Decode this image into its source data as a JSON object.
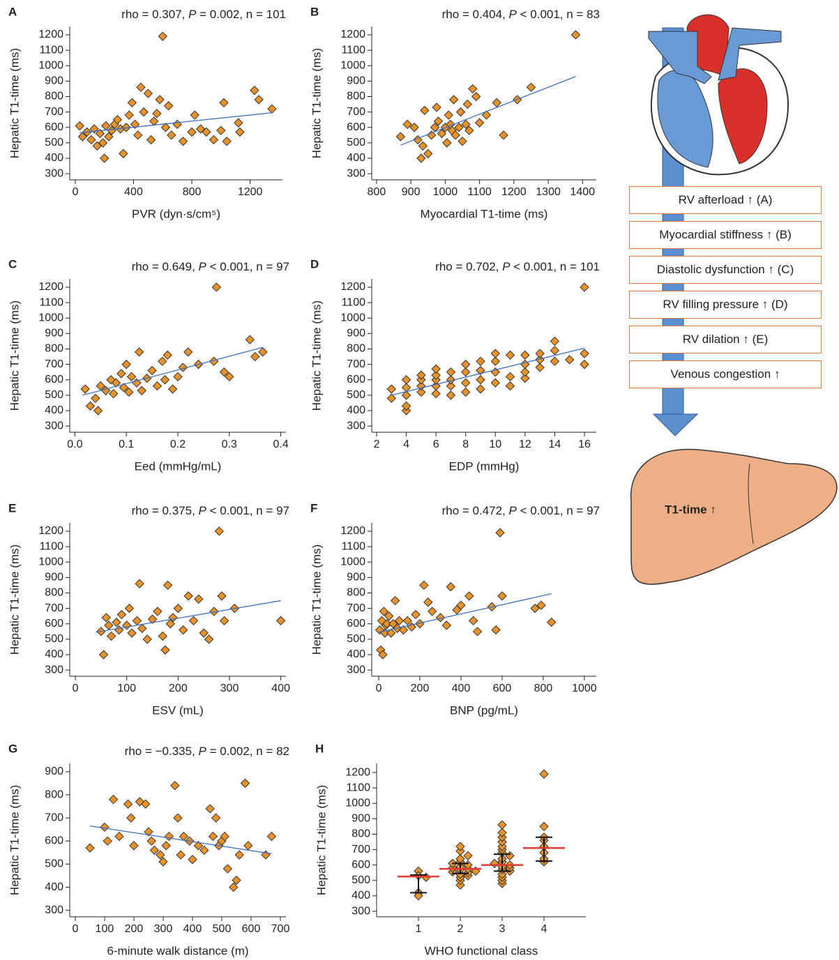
{
  "chart_data": [
    {
      "type": "scatter",
      "label": "A",
      "annotation": {
        "pre": "rho = 0.307, ",
        "italic": "P",
        "post": " = 0.002, n = 101"
      },
      "xlabel": "PVR (dyn·s/cm⁵)",
      "ylabel": "Hepatic T1-time (ms)",
      "color": "#e8922a",
      "fit_color": "#3a6fc4",
      "x": [
        30,
        50,
        80,
        110,
        130,
        150,
        170,
        190,
        200,
        210,
        230,
        250,
        270,
        290,
        310,
        330,
        350,
        370,
        390,
        410,
        430,
        450,
        470,
        500,
        520,
        540,
        560,
        580,
        600,
        620,
        640,
        660,
        700,
        740,
        800,
        820,
        860,
        900,
        950,
        1000,
        1020,
        1040,
        1120,
        1130,
        1230,
        1260,
        1350
      ],
      "y": [
        610,
        540,
        570,
        520,
        590,
        480,
        560,
        500,
        400,
        610,
        540,
        580,
        620,
        650,
        590,
        430,
        600,
        680,
        760,
        620,
        550,
        860,
        700,
        820,
        520,
        640,
        690,
        780,
        1190,
        600,
        740,
        550,
        620,
        510,
        570,
        680,
        590,
        570,
        520,
        580,
        760,
        510,
        630,
        570,
        840,
        780,
        720
      ],
      "fit": {
        "x": [
          30,
          1350
        ],
        "y": [
          565,
          695
        ]
      },
      "xlim": [
        -38,
        1422
      ],
      "ylim": [
        260,
        1254
      ],
      "xticks": [
        0,
        400,
        800,
        1200
      ],
      "yticks": [
        300,
        400,
        500,
        600,
        700,
        800,
        900,
        1000,
        1100,
        1200
      ]
    },
    {
      "type": "scatter",
      "label": "B",
      "annotation": {
        "pre": "rho = 0.404, ",
        "italic": "P",
        "post": " < 0.001, n = 83"
      },
      "xlabel": "Myocardial T1-time (ms)",
      "ylabel": "Hepatic T1-time (ms)",
      "color": "#e8922a",
      "fit_color": "#3a6fc4",
      "x": [
        870,
        890,
        910,
        920,
        930,
        935,
        940,
        950,
        960,
        970,
        975,
        980,
        990,
        1000,
        1005,
        1010,
        1015,
        1020,
        1025,
        1030,
        1040,
        1045,
        1050,
        1060,
        1065,
        1070,
        1080,
        1090,
        1100,
        1120,
        1150,
        1170,
        1210,
        1250,
        1380
      ],
      "y": [
        540,
        620,
        600,
        520,
        400,
        480,
        710,
        430,
        550,
        600,
        730,
        640,
        560,
        600,
        500,
        680,
        620,
        580,
        780,
        550,
        600,
        700,
        510,
        620,
        750,
        580,
        850,
        800,
        630,
        680,
        760,
        550,
        780,
        860,
        1200
      ],
      "fit": {
        "x": [
          870,
          1380
        ],
        "y": [
          485,
          930
        ]
      },
      "xlim": [
        786,
        1440
      ],
      "ylim": [
        260,
        1254
      ],
      "xticks": [
        800,
        900,
        1000,
        1100,
        1200,
        1300,
        1400
      ],
      "yticks": [
        300,
        400,
        500,
        600,
        700,
        800,
        900,
        1000,
        1100,
        1200
      ]
    },
    {
      "type": "scatter",
      "label": "C",
      "annotation": {
        "pre": "rho = 0.649, ",
        "italic": "P",
        "post": " < 0.001, n = 97"
      },
      "xlabel": "Eed (mmHg/mL)",
      "ylabel": "Hepatic T1-time (ms)",
      "color": "#e8922a",
      "fit_color": "#3a6fc4",
      "x": [
        0.02,
        0.03,
        0.04,
        0.045,
        0.05,
        0.06,
        0.07,
        0.075,
        0.08,
        0.09,
        0.095,
        0.1,
        0.105,
        0.11,
        0.12,
        0.125,
        0.13,
        0.14,
        0.15,
        0.16,
        0.17,
        0.175,
        0.18,
        0.19,
        0.2,
        0.21,
        0.22,
        0.24,
        0.27,
        0.275,
        0.29,
        0.3,
        0.34,
        0.35,
        0.365
      ],
      "y": [
        540,
        430,
        480,
        400,
        560,
        530,
        600,
        510,
        580,
        640,
        550,
        700,
        520,
        620,
        580,
        780,
        530,
        610,
        660,
        560,
        720,
        600,
        760,
        540,
        620,
        680,
        780,
        700,
        720,
        1200,
        650,
        620,
        860,
        750,
        780
      ],
      "fit": {
        "x": [
          0.015,
          0.365
        ],
        "y": [
          500,
          810
        ]
      },
      "xlim": [
        -0.01,
        0.41
      ],
      "ylim": [
        260,
        1254
      ],
      "xticks": [
        {
          "value": 0,
          "label": "0.0"
        },
        0.1,
        0.2,
        0.3,
        0.4
      ],
      "yticks": [
        300,
        400,
        500,
        600,
        700,
        800,
        900,
        1000,
        1100,
        1200
      ]
    },
    {
      "type": "scatter",
      "label": "D",
      "annotation": {
        "pre": "rho = 0.702, ",
        "italic": "P",
        "post": " < 0.001, n = 101"
      },
      "xlabel": "EDP (mmHg)",
      "ylabel": "Hepatic T1-time (ms)",
      "color": "#e8922a",
      "fit_color": "#3a6fc4",
      "x": [
        3,
        3,
        4,
        4,
        4,
        4,
        4,
        5,
        5,
        5,
        5,
        6,
        6,
        6,
        6,
        6,
        7,
        7,
        7,
        7,
        8,
        8,
        8,
        8,
        9,
        9,
        9,
        9,
        10,
        10,
        10,
        10,
        11,
        11,
        11,
        12,
        12,
        12,
        12,
        13,
        13,
        13,
        14,
        14,
        14,
        15,
        16,
        16,
        16
      ],
      "y": [
        480,
        540,
        400,
        430,
        500,
        550,
        600,
        520,
        560,
        600,
        630,
        510,
        560,
        600,
        630,
        670,
        500,
        560,
        600,
        650,
        520,
        580,
        650,
        700,
        540,
        600,
        660,
        720,
        580,
        650,
        720,
        770,
        560,
        620,
        760,
        610,
        650,
        700,
        760,
        680,
        730,
        770,
        720,
        790,
        850,
        730,
        700,
        770,
        1200
      ],
      "fit": {
        "x": [
          3,
          16
        ],
        "y": [
          500,
          805
        ]
      },
      "xlim": [
        1.67,
        16.8
      ],
      "ylim": [
        260,
        1254
      ],
      "xticks": [
        2,
        4,
        6,
        8,
        10,
        12,
        14,
        16
      ],
      "yticks": [
        300,
        400,
        500,
        600,
        700,
        800,
        900,
        1000,
        1100,
        1200
      ]
    },
    {
      "type": "scatter",
      "label": "E",
      "annotation": {
        "pre": "rho = 0.375, ",
        "italic": "P",
        "post": " < 0.001, n = 97"
      },
      "xlabel": "ESV (mL)",
      "ylabel": "Hepatic T1-time (ms)",
      "color": "#e8922a",
      "fit_color": "#3a6fc4",
      "x": [
        50,
        55,
        60,
        65,
        70,
        80,
        85,
        90,
        100,
        105,
        110,
        120,
        125,
        130,
        140,
        150,
        160,
        170,
        175,
        180,
        185,
        190,
        200,
        210,
        220,
        230,
        240,
        250,
        260,
        270,
        280,
        285,
        290,
        310,
        400
      ],
      "y": [
        550,
        400,
        640,
        590,
        520,
        610,
        560,
        660,
        590,
        700,
        540,
        620,
        860,
        570,
        500,
        630,
        680,
        520,
        430,
        850,
        600,
        640,
        700,
        560,
        780,
        620,
        760,
        540,
        500,
        680,
        1200,
        780,
        620,
        700,
        620
      ],
      "fit": {
        "x": [
          40,
          400
        ],
        "y": [
          545,
          750
        ]
      },
      "xlim": [
        -11,
        410
      ],
      "ylim": [
        260,
        1254
      ],
      "xticks": [
        0,
        100,
        200,
        300,
        400
      ],
      "yticks": [
        300,
        400,
        500,
        600,
        700,
        800,
        900,
        1000,
        1100,
        1200
      ]
    },
    {
      "type": "scatter",
      "label": "F",
      "annotation": {
        "pre": "rho = 0.472, ",
        "italic": "P",
        "post": " < 0.001, n = 97"
      },
      "xlabel": "BNP (pg/mL)",
      "ylabel": "Hepatic T1-time (ms)",
      "color": "#e8922a",
      "fit_color": "#3a6fc4",
      "x": [
        5,
        10,
        15,
        20,
        25,
        30,
        35,
        40,
        50,
        60,
        70,
        80,
        90,
        100,
        120,
        140,
        160,
        180,
        200,
        220,
        240,
        260,
        300,
        330,
        350,
        380,
        400,
        440,
        460,
        480,
        550,
        570,
        590,
        600,
        760,
        790,
        840
      ],
      "y": [
        560,
        430,
        620,
        400,
        680,
        540,
        590,
        600,
        650,
        540,
        600,
        750,
        570,
        620,
        560,
        620,
        580,
        660,
        600,
        850,
        740,
        680,
        640,
        590,
        840,
        690,
        720,
        780,
        620,
        550,
        710,
        560,
        1190,
        780,
        700,
        720,
        610
      ],
      "fit": {
        "x": [
          0,
          840
        ],
        "y": [
          545,
          795
        ]
      },
      "xlim": [
        -34,
        1058
      ],
      "ylim": [
        260,
        1254
      ],
      "xticks": [
        0,
        200,
        400,
        600,
        800,
        1000
      ],
      "yticks": [
        300,
        400,
        500,
        600,
        700,
        800,
        900,
        1000,
        1100,
        1200
      ]
    },
    {
      "type": "scatter",
      "label": "G",
      "annotation": {
        "pre": "rho = −0.335, ",
        "italic": "P",
        "post": " = 0.002, n = 82"
      },
      "xlabel": "6-minute walk distance (m)",
      "ylabel": "Hepatic T1-time (ms)",
      "color": "#e8922a",
      "fit_color": "#3a6fc4",
      "x": [
        50,
        100,
        110,
        130,
        150,
        180,
        190,
        200,
        220,
        240,
        250,
        260,
        270,
        290,
        300,
        310,
        320,
        340,
        350,
        360,
        370,
        390,
        400,
        420,
        440,
        460,
        470,
        480,
        490,
        500,
        510,
        520,
        540,
        550,
        560,
        580,
        590,
        650,
        670
      ],
      "y": [
        570,
        660,
        600,
        780,
        620,
        760,
        700,
        580,
        770,
        760,
        640,
        600,
        560,
        540,
        510,
        580,
        620,
        840,
        700,
        540,
        620,
        600,
        520,
        580,
        560,
        740,
        620,
        700,
        580,
        600,
        620,
        480,
        400,
        430,
        540,
        850,
        580,
        540,
        620
      ],
      "fit": {
        "x": [
          50,
          670
        ],
        "y": [
          665,
          545
        ]
      },
      "xlim": [
        -19,
        719
      ],
      "ylim": [
        272,
        936
      ],
      "xticks": [
        0,
        100,
        200,
        300,
        400,
        500,
        600,
        700
      ],
      "yticks": [
        300,
        400,
        500,
        600,
        700,
        800,
        900
      ]
    },
    {
      "type": "strip",
      "label": "H",
      "xlabel": "WHO functional class",
      "ylabel": "Hepatic T1-time (ms)",
      "color": "#e8922a",
      "median_color": "#e03c31",
      "groups": [
        {
          "category": "1",
          "values": [
            560,
            530,
            520,
            420,
            400
          ],
          "median": 525,
          "q1": 420,
          "q3": 535
        },
        {
          "category": "2",
          "values": [
            470,
            500,
            520,
            530,
            540,
            550,
            555,
            560,
            570,
            575,
            580,
            590,
            600,
            610,
            620,
            640,
            660,
            690,
            720
          ],
          "median": 575,
          "q1": 545,
          "q3": 610
        },
        {
          "category": "3",
          "values": [
            480,
            500,
            520,
            540,
            560,
            570,
            580,
            590,
            600,
            610,
            620,
            640,
            660,
            680,
            700,
            720,
            750,
            780,
            810,
            860
          ],
          "median": 600,
          "q1": 560,
          "q3": 670
        },
        {
          "category": "4",
          "values": [
            620,
            640,
            680,
            720,
            760,
            780,
            850,
            1190
          ],
          "median": 710,
          "q1": 625,
          "q3": 780
        }
      ],
      "xlim": [
        0,
        5
      ],
      "ylim": [
        264,
        1259
      ],
      "yticks": [
        300,
        400,
        500,
        600,
        700,
        800,
        900,
        1000,
        1100,
        1200
      ]
    }
  ],
  "diagram": {
    "boxes": [
      "RV afterload ↑ (A)",
      "Myocardial stiffness ↑ (B)",
      "Diastolic dysfunction ↑ (C)",
      "RV filling pressure ↑ (D)",
      "RV dilation ↑ (E)",
      "Venous congestion ↑"
    ],
    "liver_label": "T1-time ↑"
  }
}
